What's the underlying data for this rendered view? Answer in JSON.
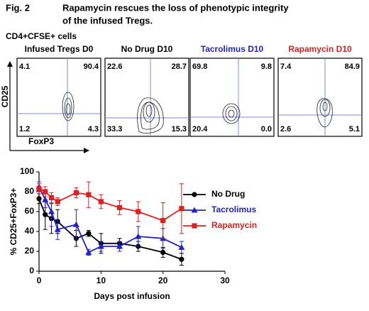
{
  "figure": {
    "label": "Fig. 2",
    "title": [
      "Rapamycin rescues the loss of phenotypic integrity",
      "of the infused Tregs."
    ]
  },
  "flow": {
    "header": "CD4+CFSE+ cells",
    "y_label": "CD25",
    "x_label": "FoxP3",
    "panels": [
      {
        "title": "Infused Tregs D0",
        "color": "#000000",
        "quadrants": [
          "4.1",
          "90.4",
          "1.2",
          "4.3"
        ]
      },
      {
        "title": "No Drug D10",
        "color": "#000000",
        "quadrants": [
          "22.6",
          "28.7",
          "33.3",
          "15.3"
        ]
      },
      {
        "title": "Tacrolimus D10",
        "color": "#2222cc",
        "quadrants": [
          "69.8",
          "9.8",
          "20.4",
          "0.0"
        ]
      },
      {
        "title": "Rapamycin D10",
        "color": "#e02020",
        "quadrants": [
          "7.4",
          "84.9",
          "2.6",
          "5.1"
        ]
      }
    ]
  },
  "chart_data": {
    "type": "line",
    "xlabel": "Days post infusion",
    "ylabel": "% CD25+FoxP3+",
    "x": [
      0,
      1,
      2,
      3,
      6,
      8,
      10,
      13,
      16,
      20,
      23
    ],
    "xlim": [
      0,
      30
    ],
    "xticks": [
      0,
      10,
      20,
      30
    ],
    "ylim": [
      0,
      100
    ],
    "yticks": [
      0,
      20,
      40,
      60,
      80,
      100
    ],
    "legend": "right",
    "series": [
      {
        "name": "No Drug",
        "color": "#000000",
        "marker": "circle",
        "values": [
          73,
          57,
          53,
          50,
          33,
          38,
          28,
          28,
          25,
          19,
          12
        ],
        "errors": [
          5,
          15,
          15,
          12,
          8,
          3,
          10,
          5,
          5,
          5,
          6
        ]
      },
      {
        "name": "Tacrolimus",
        "color": "#2222cc",
        "marker": "triangle",
        "values": [
          85,
          72,
          60,
          42,
          47,
          19,
          25,
          25,
          35,
          33,
          24
        ],
        "errors": [
          5,
          8,
          15,
          10,
          15,
          3,
          5,
          5,
          10,
          10,
          6
        ]
      },
      {
        "name": "Rapamycin",
        "color": "#e02020",
        "marker": "square",
        "values": [
          83,
          80,
          74,
          70,
          79,
          77,
          70,
          64,
          60,
          51,
          63
        ],
        "errors": [
          5,
          5,
          5,
          4,
          5,
          13,
          7,
          7,
          10,
          18,
          25
        ]
      }
    ]
  }
}
